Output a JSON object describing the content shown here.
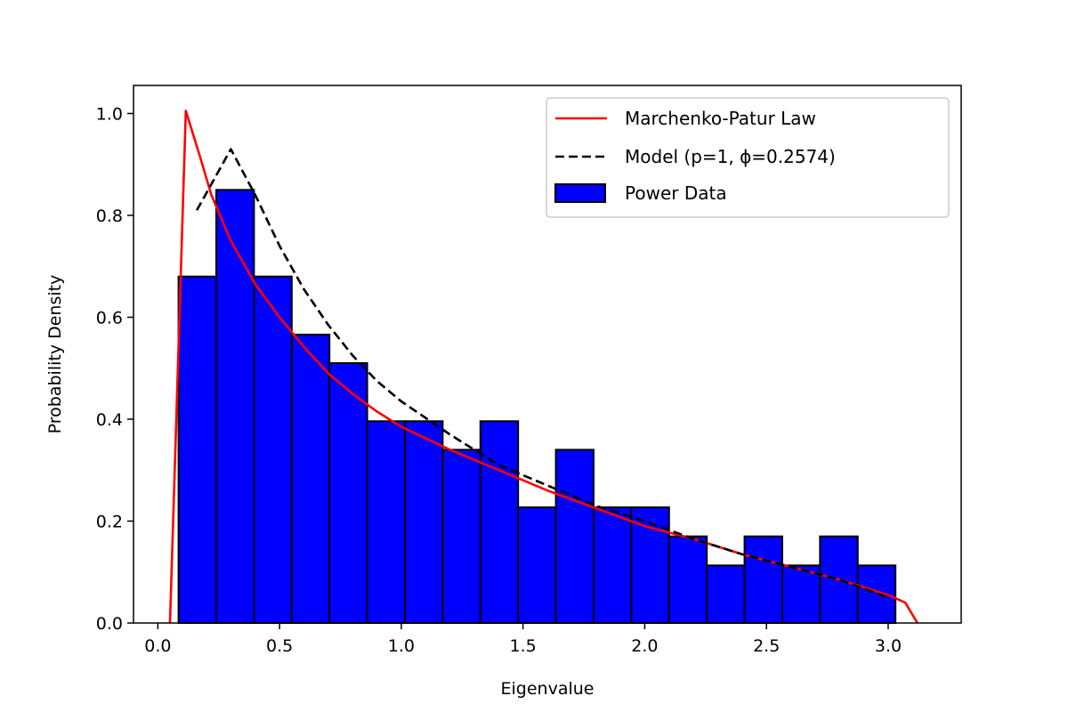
{
  "chart_data": {
    "type": "bar",
    "title": "",
    "xlabel": "Eigenvalue",
    "ylabel": "Probability Density",
    "xlim": [
      -0.1,
      3.3
    ],
    "ylim": [
      0.0,
      1.055
    ],
    "xticks": [
      0.0,
      0.5,
      1.0,
      1.5,
      2.0,
      2.5,
      3.0
    ],
    "xtick_labels": [
      "0.0",
      "0.5",
      "1.0",
      "1.5",
      "2.0",
      "2.5",
      "3.0"
    ],
    "yticks": [
      0.0,
      0.2,
      0.4,
      0.6,
      0.8,
      1.0
    ],
    "ytick_labels": [
      "0.0",
      "0.2",
      "0.4",
      "0.6",
      "0.8",
      "1.0"
    ],
    "grid": false,
    "legend_position": "top-right",
    "histogram": {
      "name": "Power Data",
      "color": "#0000ff",
      "edgecolor": "#000000",
      "bin_edges": [
        0.085,
        0.24,
        0.395,
        0.55,
        0.705,
        0.86,
        1.015,
        1.17,
        1.325,
        1.48,
        1.635,
        1.79,
        1.945,
        2.1,
        2.255,
        2.41,
        2.565,
        2.72,
        2.875,
        3.03
      ],
      "values": [
        0.68,
        0.85,
        0.68,
        0.566,
        0.51,
        0.396,
        0.396,
        0.34,
        0.396,
        0.227,
        0.34,
        0.227,
        0.227,
        0.17,
        0.113,
        0.17,
        0.113,
        0.17,
        0.113
      ]
    },
    "series": [
      {
        "name": "Marchenko-Patur Law",
        "color": "#ff0000",
        "style": "solid",
        "x": [
          0.05,
          0.115,
          0.17,
          0.22,
          0.3,
          0.4,
          0.5,
          0.6,
          0.7,
          0.8,
          0.9,
          1.0,
          1.2,
          1.4,
          1.6,
          1.8,
          2.0,
          2.2,
          2.4,
          2.6,
          2.8,
          3.0,
          3.07,
          3.12
        ],
        "y": [
          0.0,
          1.005,
          0.92,
          0.84,
          0.75,
          0.665,
          0.6,
          0.542,
          0.49,
          0.45,
          0.415,
          0.385,
          0.34,
          0.3,
          0.26,
          0.225,
          0.19,
          0.165,
          0.135,
          0.11,
          0.085,
          0.055,
          0.04,
          0.0
        ]
      },
      {
        "name": "Model (p=1,   ϕ=0.2574)",
        "color": "#000000",
        "style": "dashed",
        "x": [
          0.16,
          0.3,
          0.4,
          0.5,
          0.6,
          0.7,
          0.8,
          0.9,
          1.0,
          1.2,
          1.4,
          1.6,
          1.8,
          2.0,
          2.2,
          2.4,
          2.6,
          2.8,
          3.0
        ],
        "y": [
          0.81,
          0.93,
          0.84,
          0.74,
          0.655,
          0.585,
          0.525,
          0.475,
          0.435,
          0.37,
          0.31,
          0.27,
          0.23,
          0.2,
          0.165,
          0.135,
          0.11,
          0.085,
          0.05
        ]
      }
    ]
  }
}
